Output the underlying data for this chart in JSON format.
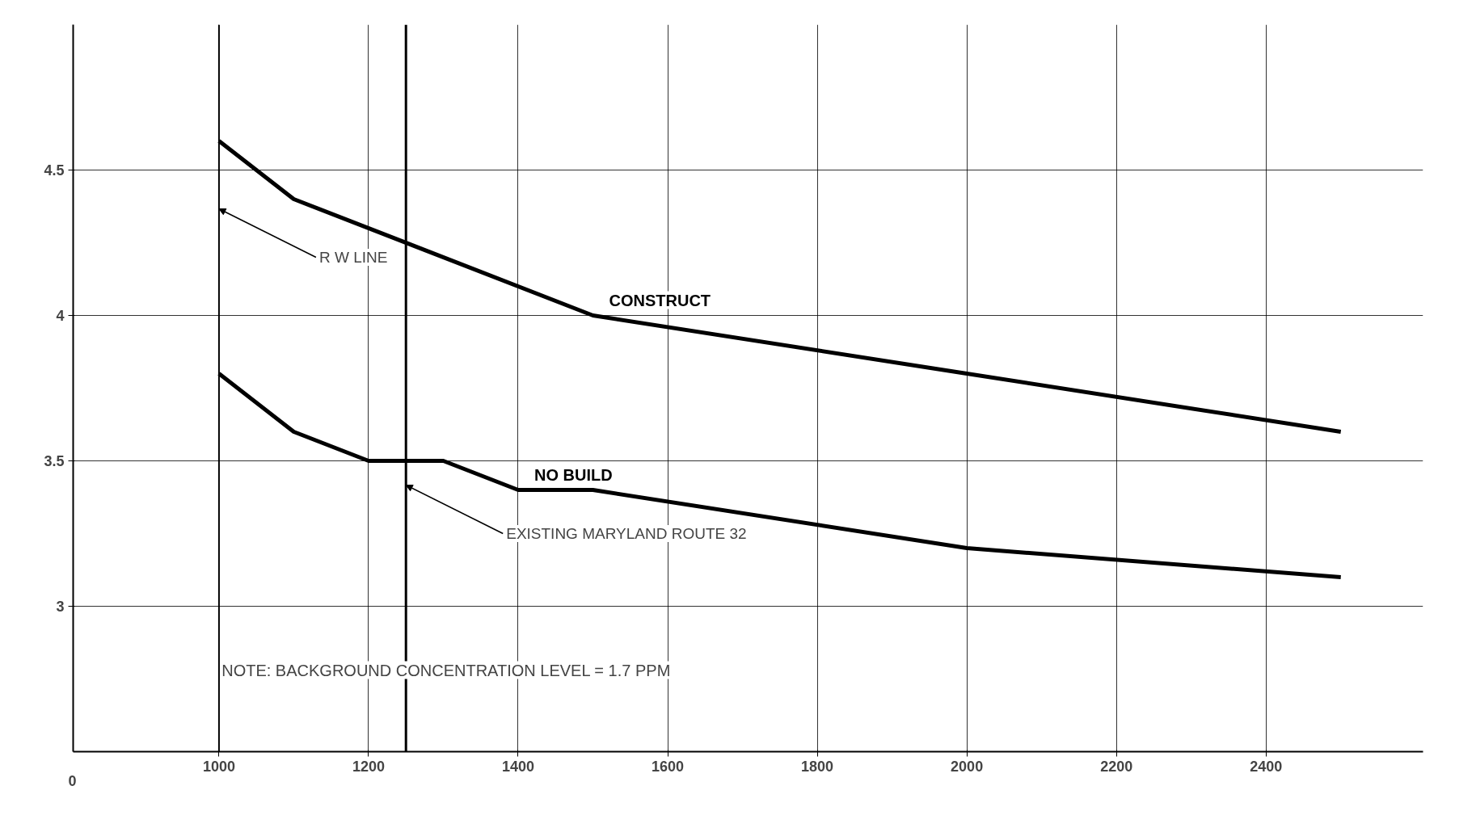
{
  "chart_data": {
    "type": "line",
    "xlim": [
      805,
      2610
    ],
    "ylim": [
      2.5,
      5.0
    ],
    "xticks": [
      1000,
      1200,
      1400,
      1600,
      1800,
      2000,
      2200,
      2400
    ],
    "yticks": [
      3.0,
      3.5,
      4.0,
      4.5
    ],
    "ref_lines": [
      {
        "axis": "x",
        "value": 1000,
        "label": "R W LINE"
      },
      {
        "axis": "x",
        "value": 1250,
        "label": "EXISTING MARYLAND ROUTE 32"
      }
    ],
    "grid": true,
    "legend": false,
    "line_style": "solid",
    "marker": "none",
    "series": [
      {
        "name": "CONSTRUCT",
        "color": "#000000",
        "x": [
          1000,
          1100,
          1500,
          2000,
          2500
        ],
        "values": [
          4.6,
          4.4,
          4.0,
          3.8,
          3.6
        ]
      },
      {
        "name": "NO BUILD",
        "color": "#000000",
        "x": [
          1000,
          1100,
          1200,
          1300,
          1400,
          1500,
          2000,
          2500
        ],
        "values": [
          3.8,
          3.6,
          3.5,
          3.5,
          3.4,
          3.4,
          3.2,
          3.1
        ]
      }
    ],
    "annotations": [
      "NOTE: BACKGROUND CONCENTRATION LEVEL = 1.7 PPM",
      "0"
    ]
  }
}
